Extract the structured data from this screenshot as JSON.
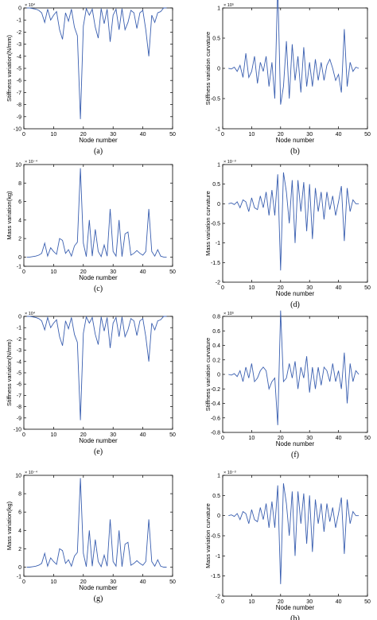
{
  "chart_data": [
    {
      "type": "line",
      "caption": "(a)",
      "multiplier": "× 10⁴",
      "xlabel": "Node number",
      "ylabel": "Stiffness variation(N/mm)",
      "xlim": [
        0,
        50
      ],
      "ylim": [
        -10,
        0
      ],
      "xticks": [
        0,
        10,
        20,
        30,
        40,
        50
      ],
      "yticks": [
        0,
        -1,
        -2,
        -3,
        -4,
        -5,
        -6,
        -7,
        -8,
        -9,
        -10
      ],
      "x": [
        1,
        2,
        3,
        4,
        5,
        6,
        7,
        8,
        9,
        10,
        11,
        12,
        13,
        14,
        15,
        16,
        17,
        18,
        19,
        20,
        21,
        22,
        23,
        24,
        25,
        26,
        27,
        28,
        29,
        30,
        31,
        32,
        33,
        34,
        35,
        36,
        37,
        38,
        39,
        40,
        41,
        42,
        43,
        44,
        45,
        46,
        47,
        48
      ],
      "y": [
        0,
        0,
        -0.05,
        -0.1,
        -0.2,
        -0.4,
        -1.2,
        -0.1,
        -1.0,
        -0.6,
        -0.3,
        -1.8,
        -2.6,
        -0.4,
        -1.1,
        -0.1,
        -1.6,
        -2.3,
        -9.2,
        -1.5,
        -0.05,
        -0.6,
        -0.1,
        -1.6,
        -2.5,
        -0.05,
        -1.3,
        -0.1,
        -2.8,
        -0.6,
        -0.1,
        -1.8,
        -0.05,
        -1.8,
        -1.2,
        -0.2,
        -0.4,
        -1.7,
        -0.4,
        -0.2,
        -1.8,
        -4.0,
        -0.6,
        -1.2,
        -0.4,
        -0.3,
        0,
        0
      ]
    },
    {
      "type": "line",
      "caption": "(b)",
      "multiplier": "× 10⁵",
      "xlabel": "Node number",
      "ylabel": "Stiffness variation curvature",
      "xlim": [
        0,
        50
      ],
      "ylim": [
        -1,
        1
      ],
      "xticks": [
        0,
        10,
        20,
        30,
        40,
        50
      ],
      "yticks": [
        1,
        0.5,
        0,
        -0.5,
        -1
      ],
      "x": [
        2,
        3,
        4,
        5,
        6,
        7,
        8,
        9,
        10,
        11,
        12,
        13,
        14,
        15,
        16,
        17,
        18,
        19,
        20,
        21,
        22,
        23,
        24,
        25,
        26,
        27,
        28,
        29,
        30,
        31,
        32,
        33,
        34,
        35,
        36,
        37,
        38,
        39,
        40,
        41,
        42,
        43,
        44,
        45,
        46,
        47
      ],
      "y": [
        0,
        -0.01,
        0.02,
        -0.05,
        0.05,
        -0.15,
        0.25,
        -0.15,
        -0.05,
        0.2,
        -0.25,
        0.1,
        -0.05,
        0.2,
        -0.3,
        0.1,
        -0.5,
        1.4,
        -0.6,
        -0.3,
        0.45,
        -0.5,
        0.4,
        -0.2,
        0.2,
        -0.4,
        0.35,
        -0.3,
        0.1,
        -0.3,
        0.15,
        -0.2,
        0.1,
        -0.2,
        0.05,
        0.15,
        0,
        -0.2,
        -0.1,
        -0.4,
        0.65,
        -0.3,
        0.1,
        -0.05,
        0.02,
        0
      ]
    },
    {
      "type": "line",
      "caption": "(c)",
      "multiplier": "× 10⁻⁴",
      "xlabel": "Node number",
      "ylabel": "Mass variation(kg)",
      "xlim": [
        0,
        50
      ],
      "ylim": [
        -1,
        10
      ],
      "xticks": [
        0,
        10,
        20,
        30,
        40,
        50
      ],
      "yticks": [
        10,
        8,
        6,
        4,
        2,
        0,
        -1
      ],
      "x": [
        1,
        2,
        3,
        4,
        5,
        6,
        7,
        8,
        9,
        10,
        11,
        12,
        13,
        14,
        15,
        16,
        17,
        18,
        19,
        20,
        21,
        22,
        23,
        24,
        25,
        26,
        27,
        28,
        29,
        30,
        31,
        32,
        33,
        34,
        35,
        36,
        37,
        38,
        39,
        40,
        41,
        42,
        43,
        44,
        45,
        46,
        47,
        48
      ],
      "y": [
        0,
        0,
        0.05,
        0.1,
        0.2,
        0.4,
        1.5,
        0.1,
        1.0,
        0.6,
        0.3,
        2.0,
        1.8,
        0.4,
        0.8,
        0.1,
        1.2,
        1.6,
        9.6,
        1.5,
        0.05,
        4.0,
        0.1,
        3.0,
        0.6,
        0.05,
        1.3,
        0.1,
        5.2,
        0.6,
        0.1,
        4.0,
        0.05,
        2.5,
        2.7,
        0.2,
        0.4,
        0.7,
        0.4,
        0.2,
        0.6,
        5.2,
        0.6,
        0.1,
        0.8,
        0.1,
        0,
        0
      ]
    },
    {
      "type": "line",
      "caption": "(d)",
      "multiplier": "× 10⁻³",
      "xlabel": "Node number",
      "ylabel": "Mass variation curvature",
      "xlim": [
        0,
        50
      ],
      "ylim": [
        -2,
        1
      ],
      "xticks": [
        0,
        10,
        20,
        30,
        40,
        50
      ],
      "yticks": [
        1,
        0.5,
        0,
        -0.5,
        -1,
        -1.5,
        -2
      ],
      "x": [
        2,
        3,
        4,
        5,
        6,
        7,
        8,
        9,
        10,
        11,
        12,
        13,
        14,
        15,
        16,
        17,
        18,
        19,
        20,
        21,
        22,
        23,
        24,
        25,
        26,
        27,
        28,
        29,
        30,
        31,
        32,
        33,
        34,
        35,
        36,
        37,
        38,
        39,
        40,
        41,
        42,
        43,
        44,
        45,
        46,
        47
      ],
      "y": [
        0,
        0.02,
        -0.02,
        0.05,
        -0.1,
        0.1,
        0.05,
        -0.2,
        0.15,
        -0.1,
        -0.15,
        0.2,
        -0.1,
        0.3,
        -0.3,
        0.35,
        -0.3,
        0.75,
        -1.7,
        0.8,
        0.3,
        -0.5,
        0.6,
        -1.0,
        0.6,
        -0.2,
        0.55,
        -0.7,
        0.5,
        -0.9,
        0.4,
        -0.2,
        0.3,
        -0.4,
        0.3,
        -0.15,
        0.2,
        -0.3,
        0.05,
        0.45,
        -0.95,
        0.4,
        -0.2,
        0.1,
        0,
        0
      ]
    },
    {
      "type": "line",
      "caption": "(e)",
      "multiplier": "× 10⁴",
      "xlabel": "Node number",
      "ylabel": "Stiffness variation(N/mm)",
      "xlim": [
        0,
        50
      ],
      "ylim": [
        -10,
        0
      ],
      "xticks": [
        0,
        10,
        20,
        30,
        40,
        50
      ],
      "yticks": [
        0,
        -1,
        -2,
        -3,
        -4,
        -5,
        -6,
        -7,
        -8,
        -9,
        -10
      ],
      "x": [
        1,
        2,
        3,
        4,
        5,
        6,
        7,
        8,
        9,
        10,
        11,
        12,
        13,
        14,
        15,
        16,
        17,
        18,
        19,
        20,
        21,
        22,
        23,
        24,
        25,
        26,
        27,
        28,
        29,
        30,
        31,
        32,
        33,
        34,
        35,
        36,
        37,
        38,
        39,
        40,
        41,
        42,
        43,
        44,
        45,
        46,
        47,
        48
      ],
      "y": [
        0,
        0,
        -0.05,
        -0.1,
        -0.2,
        -0.4,
        -1.2,
        -0.1,
        -1.0,
        -0.6,
        -0.3,
        -1.8,
        -2.6,
        -0.4,
        -1.1,
        -0.1,
        -1.6,
        -2.3,
        -9.2,
        -1.5,
        -0.05,
        -0.6,
        -0.1,
        -1.6,
        -2.5,
        -0.05,
        -1.3,
        -0.1,
        -2.8,
        -0.6,
        -0.1,
        -1.8,
        -0.05,
        -1.8,
        -1.2,
        -0.2,
        -0.4,
        -1.7,
        -0.4,
        -0.2,
        -1.8,
        -4.0,
        -0.6,
        -1.2,
        -0.4,
        -0.3,
        0,
        0
      ]
    },
    {
      "type": "line",
      "caption": "(f)",
      "multiplier": "× 10⁵",
      "xlabel": "Node number",
      "ylabel": "Stiffness variation curvature",
      "xlim": [
        0,
        50
      ],
      "ylim": [
        -0.8,
        0.8
      ],
      "xticks": [
        0,
        10,
        20,
        30,
        40,
        50
      ],
      "yticks": [
        0.8,
        0.6,
        0.4,
        0.2,
        0,
        -0.2,
        -0.4,
        -0.6,
        -0.8
      ],
      "x": [
        2,
        3,
        4,
        5,
        6,
        7,
        8,
        9,
        10,
        11,
        12,
        13,
        14,
        15,
        16,
        17,
        18,
        19,
        20,
        21,
        22,
        23,
        24,
        25,
        26,
        27,
        28,
        29,
        30,
        31,
        32,
        33,
        34,
        35,
        36,
        37,
        38,
        39,
        40,
        41,
        42,
        43,
        44,
        45,
        46,
        47
      ],
      "y": [
        0,
        -0.01,
        0.01,
        -0.03,
        0.05,
        -0.1,
        0.1,
        -0.05,
        0.15,
        -0.1,
        -0.05,
        0.05,
        0.1,
        0.05,
        -0.2,
        -0.1,
        -0.05,
        -0.7,
        0.88,
        -0.1,
        -0.05,
        0.15,
        -0.05,
        0.18,
        -0.2,
        0.1,
        -0.05,
        0.25,
        -0.25,
        0.1,
        -0.2,
        0.1,
        -0.15,
        0.1,
        0.05,
        -0.1,
        0.15,
        -0.1,
        0.05,
        -0.2,
        0.3,
        -0.4,
        0.15,
        -0.1,
        0.05,
        0
      ]
    },
    {
      "type": "line",
      "caption": "(g)",
      "multiplier": "× 10⁻⁴",
      "xlabel": "Node number",
      "ylabel": "Mass variation(kg)",
      "xlim": [
        0,
        50
      ],
      "ylim": [
        -1,
        10
      ],
      "xticks": [
        0,
        10,
        20,
        30,
        40,
        50
      ],
      "yticks": [
        10,
        8,
        6,
        4,
        2,
        0,
        -1
      ],
      "x": [
        1,
        2,
        3,
        4,
        5,
        6,
        7,
        8,
        9,
        10,
        11,
        12,
        13,
        14,
        15,
        16,
        17,
        18,
        19,
        20,
        21,
        22,
        23,
        24,
        25,
        26,
        27,
        28,
        29,
        30,
        31,
        32,
        33,
        34,
        35,
        36,
        37,
        38,
        39,
        40,
        41,
        42,
        43,
        44,
        45,
        46,
        47,
        48
      ],
      "y": [
        0,
        0,
        0.05,
        0.1,
        0.2,
        0.4,
        1.5,
        0.1,
        1.0,
        0.6,
        0.3,
        2.0,
        1.8,
        0.4,
        0.8,
        0.1,
        1.2,
        1.6,
        9.7,
        1.5,
        0.05,
        4.0,
        0.1,
        3.0,
        0.6,
        0.05,
        1.3,
        0.1,
        5.2,
        0.6,
        0.1,
        4.0,
        0.05,
        2.5,
        2.7,
        0.2,
        0.4,
        0.7,
        0.4,
        0.2,
        0.6,
        5.2,
        0.6,
        0.1,
        0.8,
        0.1,
        0,
        0
      ]
    },
    {
      "type": "line",
      "caption": "(h)",
      "multiplier": "× 10⁻³",
      "xlabel": "Node number",
      "ylabel": "Mass variation curvature",
      "xlim": [
        0,
        50
      ],
      "ylim": [
        -2,
        1
      ],
      "xticks": [
        0,
        10,
        20,
        30,
        40,
        50
      ],
      "yticks": [
        1,
        0.5,
        0,
        -0.5,
        -1,
        -1.5,
        -2
      ],
      "x": [
        2,
        3,
        4,
        5,
        6,
        7,
        8,
        9,
        10,
        11,
        12,
        13,
        14,
        15,
        16,
        17,
        18,
        19,
        20,
        21,
        22,
        23,
        24,
        25,
        26,
        27,
        28,
        29,
        30,
        31,
        32,
        33,
        34,
        35,
        36,
        37,
        38,
        39,
        40,
        41,
        42,
        43,
        44,
        45,
        46,
        47
      ],
      "y": [
        0,
        0.02,
        -0.02,
        0.05,
        -0.1,
        0.1,
        0.05,
        -0.2,
        0.15,
        -0.1,
        -0.15,
        0.2,
        -0.1,
        0.3,
        -0.3,
        0.35,
        -0.3,
        0.75,
        -1.7,
        0.8,
        0.3,
        -0.5,
        0.6,
        -1.0,
        0.6,
        -0.2,
        0.55,
        -0.7,
        0.5,
        -0.9,
        0.4,
        -0.2,
        0.3,
        -0.4,
        0.3,
        -0.15,
        0.2,
        -0.3,
        0.05,
        0.45,
        -0.95,
        0.4,
        -0.2,
        0.1,
        0,
        0
      ]
    }
  ]
}
